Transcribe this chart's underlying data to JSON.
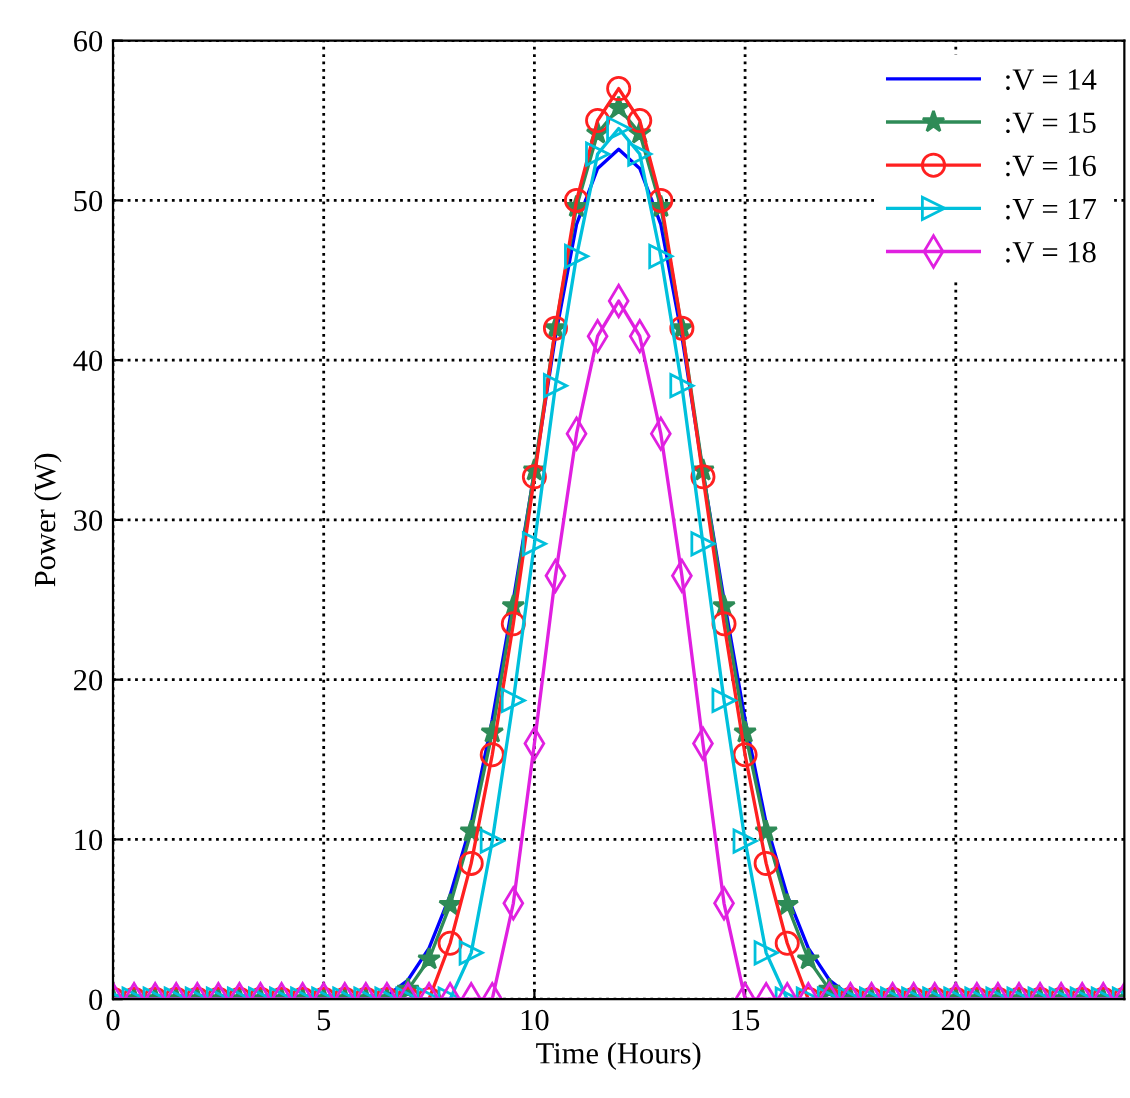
{
  "chart_data": {
    "type": "line",
    "xlabel": "Time (Hours)",
    "ylabel": "Power (W)",
    "x": [
      0,
      0.5,
      1,
      1.5,
      2,
      2.5,
      3,
      3.5,
      4,
      4.5,
      5,
      5.5,
      6,
      6.5,
      7,
      7.5,
      8,
      8.5,
      9,
      9.5,
      10,
      10.5,
      11,
      11.5,
      12,
      12.5,
      13,
      13.5,
      14,
      14.5,
      15,
      15.5,
      16,
      16.5,
      17,
      17.5,
      18,
      18.5,
      19,
      19.5,
      20,
      20.5,
      21,
      21.5,
      22,
      22.5,
      23,
      23.5,
      24
    ],
    "series": [
      {
        "name": ":V = 14",
        "color": "#0000ff",
        "marker": "none",
        "values": [
          null,
          null,
          null,
          null,
          null,
          null,
          null,
          null,
          null,
          null,
          null,
          null,
          0,
          0.2,
          1.2,
          3.2,
          6.5,
          11,
          17.5,
          25,
          33,
          41.5,
          48.5,
          52,
          53.2,
          52,
          48.5,
          41.5,
          33,
          25,
          17.5,
          11,
          6.5,
          3.2,
          1.2,
          0.2,
          0,
          null,
          null,
          null,
          null,
          null,
          null,
          null,
          null,
          null,
          null,
          null,
          null
        ]
      },
      {
        "name": ":V = 15",
        "color": "#2e8b57",
        "marker": "star",
        "values": [
          0,
          0,
          0,
          0,
          0,
          0,
          0,
          0,
          0,
          0,
          0,
          0,
          0,
          0,
          0.6,
          2.5,
          5.9,
          10.5,
          16.7,
          24.6,
          33.1,
          42,
          49.6,
          54.2,
          55.8,
          54.2,
          49.6,
          42,
          33.1,
          24.6,
          16.7,
          10.5,
          5.9,
          2.5,
          0.6,
          0,
          0,
          0,
          0,
          0,
          0,
          0,
          0,
          0,
          0,
          0,
          0,
          0,
          0
        ]
      },
      {
        "name": ":V = 16",
        "color": "#ff2020",
        "marker": "circle",
        "values": [
          0,
          0,
          0,
          0,
          0,
          0,
          0,
          0,
          0,
          0,
          0,
          0,
          0,
          0,
          0,
          0,
          3.5,
          8.5,
          15.3,
          23.5,
          32.7,
          42,
          50,
          55,
          57,
          55,
          50,
          42,
          32.7,
          23.5,
          15.3,
          8.5,
          3.5,
          0,
          0,
          0,
          0,
          0,
          0,
          0,
          0,
          0,
          0,
          0,
          0,
          0,
          0,
          0,
          0
        ]
      },
      {
        "name": ":V = 17",
        "color": "#00c0dc",
        "marker": "triangle",
        "values": [
          0,
          0,
          0,
          0,
          0,
          0,
          0,
          0,
          0,
          0,
          0,
          0,
          0,
          0,
          0,
          0,
          0,
          2.9,
          9.9,
          18.7,
          28.5,
          38.4,
          46.5,
          52.9,
          54.5,
          52.9,
          46.5,
          38.4,
          28.5,
          18.7,
          9.9,
          2.9,
          0,
          0,
          0,
          0,
          0,
          0,
          0,
          0,
          0,
          0,
          0,
          0,
          0,
          0,
          0,
          0,
          0
        ]
      },
      {
        "name": ":V = 18",
        "color": "#e020e0",
        "marker": "diamond",
        "values": [
          0,
          0,
          0,
          0,
          0,
          0,
          0,
          0,
          0,
          0,
          0,
          0,
          0,
          0,
          0,
          0,
          0,
          0,
          0,
          6,
          16,
          26.5,
          35.4,
          41.5,
          43.7,
          41.5,
          35.4,
          26.5,
          16,
          6,
          0,
          0,
          0,
          0,
          0,
          0,
          0,
          0,
          0,
          0,
          0,
          0,
          0,
          0,
          0,
          0,
          0,
          0,
          0
        ]
      }
    ],
    "xlim": [
      0,
      24
    ],
    "xticks": [
      0,
      5,
      10,
      15,
      20
    ],
    "ylim": [
      0,
      60
    ],
    "yticks": [
      0,
      10,
      20,
      30,
      40,
      50,
      60
    ],
    "grid": true,
    "legend": "top right"
  }
}
